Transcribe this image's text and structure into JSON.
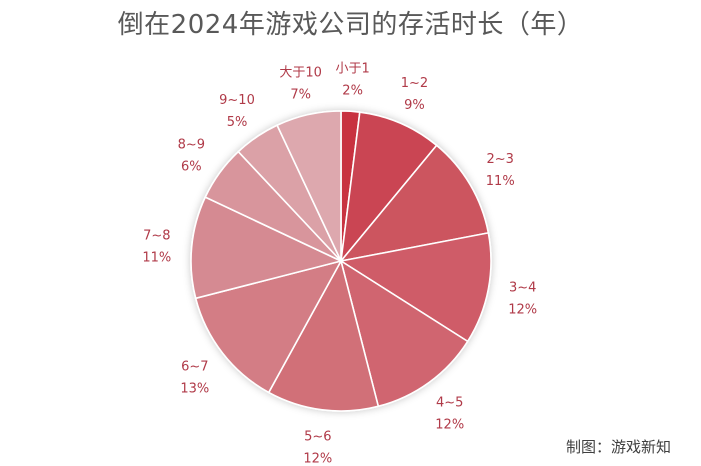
{
  "title": "倒在2024年游戏公司的存活时长（年）",
  "credit": "制图：游戏新知",
  "chart_data": {
    "type": "pie",
    "categories": [
      "小于1",
      "1~2",
      "2~3",
      "3~4",
      "4~5",
      "5~6",
      "6~7",
      "7~8",
      "8~9",
      "9~10",
      "大于10"
    ],
    "values": [
      2,
      9,
      11,
      12,
      12,
      12,
      13,
      11,
      6,
      5,
      7
    ],
    "value_labels": [
      "2%",
      "9%",
      "11%",
      "12%",
      "12%",
      "12%",
      "13%",
      "11%",
      "6%",
      "5%",
      "7%"
    ],
    "colors": [
      "#c8323f",
      "#ca4552",
      "#cc555f",
      "#cf5c67",
      "#d06570",
      "#d16f78",
      "#d37d85",
      "#d58a92",
      "#d8959c",
      "#dba1a7",
      "#dda8ae"
    ],
    "legend": "none"
  }
}
